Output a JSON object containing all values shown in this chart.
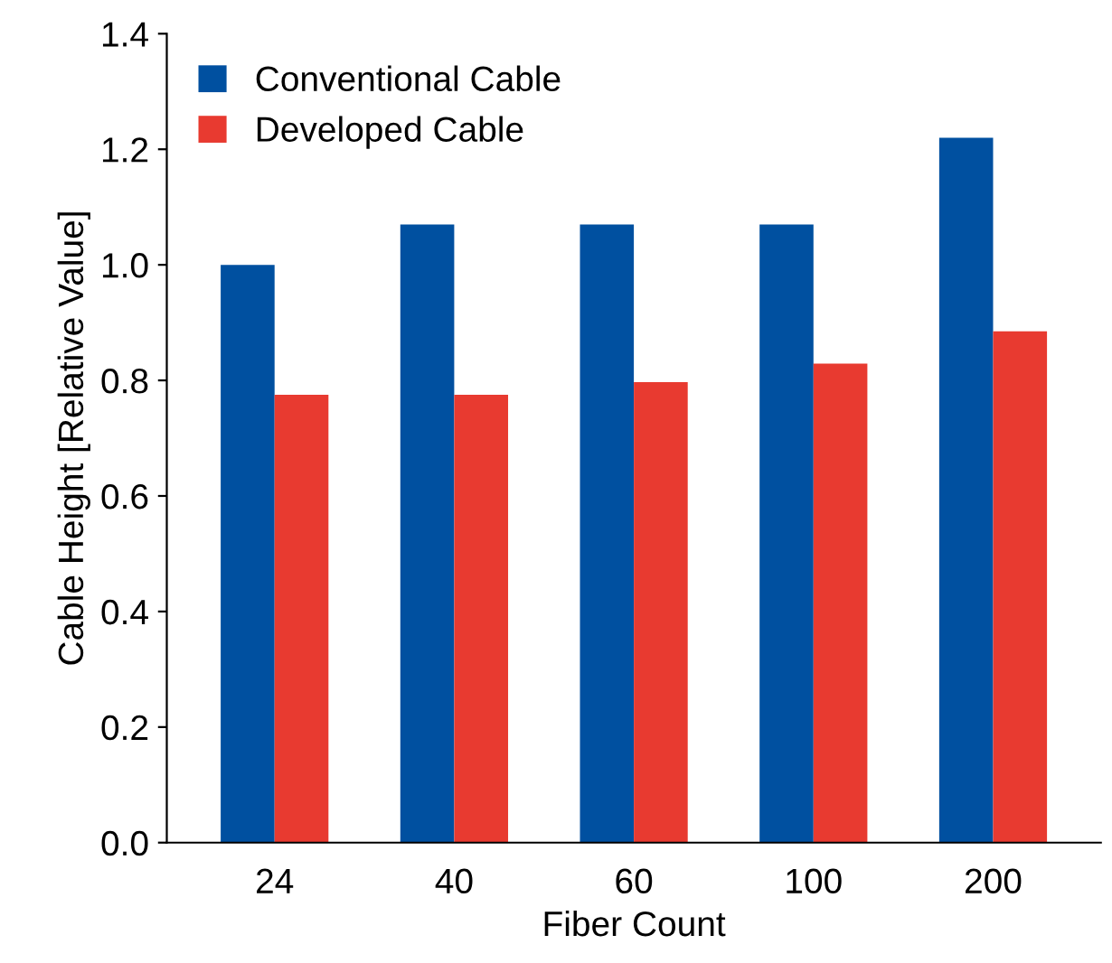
{
  "chart_data": {
    "type": "bar",
    "xlabel": "Fiber Count",
    "ylabel": "Cable Height [Relative Value]",
    "categories": [
      "24",
      "40",
      "60",
      "100",
      "200"
    ],
    "series": [
      {
        "name": "Conventional Cable",
        "color": "#0050a0",
        "values": [
          1.0,
          1.07,
          1.07,
          1.07,
          1.22
        ]
      },
      {
        "name": "Developed Cable",
        "color": "#e83a30",
        "values": [
          0.775,
          0.775,
          0.797,
          0.829,
          0.885
        ]
      }
    ],
    "ylim": [
      0,
      1.4
    ],
    "yticks": [
      {
        "value": 0,
        "label": "0.0"
      },
      0.2,
      0.4,
      0.6,
      0.8,
      {
        "value": 1,
        "label": "1.0"
      },
      1.2,
      1.4
    ],
    "grid": false,
    "legend": "top left"
  }
}
